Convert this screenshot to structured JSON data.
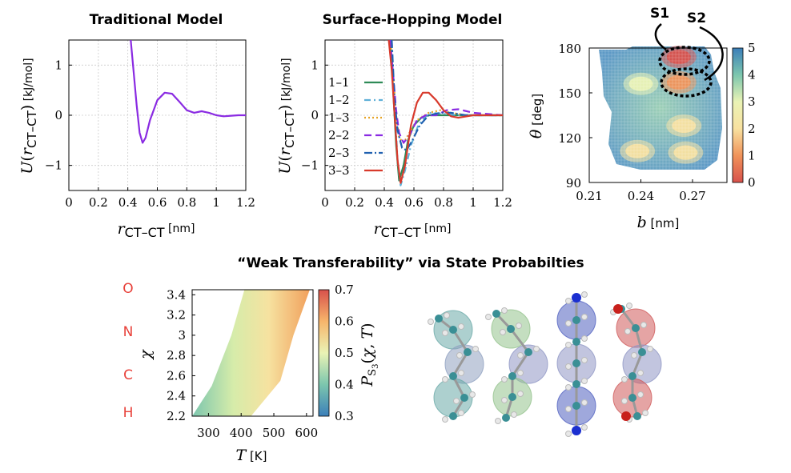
{
  "titles": {
    "traditional": "Traditional Model",
    "surface": "Surface-Hopping Model",
    "weak": "“Weak Transferability” via State Probabilties"
  },
  "states": {
    "s1": "S1",
    "s2": "S2"
  },
  "elements": [
    "O",
    "N",
    "C",
    "H"
  ],
  "chart_data": [
    {
      "type": "line",
      "title": "Traditional Model",
      "xlabel": "r_CT–CT [nm]",
      "ylabel": "U(r_CT–CT) [kJ/mol]",
      "xlim": [
        0,
        1.2
      ],
      "ylim": [
        -1.5,
        1.5
      ],
      "xticks": [
        "0",
        "0.2",
        "0.4",
        "0.6",
        "0.8",
        "1",
        "1.2"
      ],
      "yticks": [
        "1",
        "0",
        "−1"
      ],
      "grid": true,
      "series": [
        {
          "color": "#8a2be2",
          "x": [
            0.42,
            0.44,
            0.46,
            0.48,
            0.5,
            0.52,
            0.55,
            0.6,
            0.65,
            0.7,
            0.75,
            0.8,
            0.85,
            0.9,
            0.95,
            1.0,
            1.05,
            1.1,
            1.15,
            1.2
          ],
          "y": [
            1.5,
            0.85,
            0.2,
            -0.35,
            -0.55,
            -0.45,
            -0.1,
            0.3,
            0.45,
            0.43,
            0.27,
            0.1,
            0.05,
            0.08,
            0.05,
            0.0,
            -0.02,
            -0.01,
            0.0,
            0.0
          ]
        }
      ]
    },
    {
      "type": "line",
      "title": "Surface-Hopping Model",
      "xlabel": "r_CT–CT [nm]",
      "ylabel": "U(r_CT–CT) [kJ/mol]",
      "xlim": [
        0,
        1.2
      ],
      "ylim": [
        -1.5,
        1.5
      ],
      "xticks": [
        "0",
        "0.2",
        "0.4",
        "0.6",
        "0.8",
        "1",
        "1.2"
      ],
      "yticks": [
        "1",
        "0",
        "−1"
      ],
      "grid": true,
      "legend": "left",
      "series": [
        {
          "name": "1–1",
          "color": "#2e8b57",
          "dash": "",
          "x": [
            0.44,
            0.46,
            0.48,
            0.5,
            0.53,
            0.56,
            0.6,
            0.65,
            0.7,
            0.8,
            0.9,
            1.0,
            1.2
          ],
          "y": [
            1.5,
            0.5,
            -0.6,
            -1.3,
            -1.0,
            -0.5,
            -0.2,
            -0.05,
            0.0,
            0.0,
            0.0,
            0.0,
            0.0
          ]
        },
        {
          "name": "1–2",
          "color": "#5fb0d8",
          "dash": "8,4,2,4",
          "x": [
            0.45,
            0.47,
            0.49,
            0.51,
            0.54,
            0.58,
            0.63,
            0.7,
            0.8,
            0.9,
            1.0,
            1.2
          ],
          "y": [
            1.5,
            0.2,
            -0.9,
            -1.4,
            -1.1,
            -0.6,
            -0.2,
            0.05,
            0.03,
            0.0,
            0.0,
            0.0
          ]
        },
        {
          "name": "1–3",
          "color": "#e6a326",
          "dash": "2,3",
          "x": [
            0.44,
            0.46,
            0.48,
            0.5,
            0.53,
            0.57,
            0.62,
            0.7,
            0.78,
            0.85,
            0.95,
            1.2
          ],
          "y": [
            1.5,
            0.8,
            0.0,
            -0.45,
            -0.55,
            -0.35,
            -0.1,
            0.05,
            0.1,
            0.05,
            0.0,
            0.0
          ]
        },
        {
          "name": "2–2",
          "color": "#8a2be2",
          "dash": "9,5",
          "x": [
            0.44,
            0.46,
            0.48,
            0.5,
            0.53,
            0.57,
            0.62,
            0.68,
            0.75,
            0.82,
            0.9,
            1.0,
            1.2
          ],
          "y": [
            1.5,
            0.8,
            0.1,
            -0.35,
            -0.55,
            -0.4,
            -0.1,
            0.0,
            0.0,
            0.1,
            0.12,
            0.05,
            0.0
          ]
        },
        {
          "name": "2–3",
          "color": "#2060b0",
          "dash": "10,3,2,3",
          "x": [
            0.45,
            0.47,
            0.49,
            0.52,
            0.55,
            0.59,
            0.64,
            0.7,
            0.78,
            0.85,
            0.95,
            1.2
          ],
          "y": [
            1.5,
            0.3,
            -0.3,
            -0.65,
            -0.7,
            -0.5,
            -0.2,
            0.0,
            0.05,
            0.05,
            0.0,
            0.0
          ]
        },
        {
          "name": "3–3",
          "color": "#d83a2c",
          "dash": "",
          "x": [
            0.43,
            0.45,
            0.47,
            0.49,
            0.51,
            0.54,
            0.58,
            0.62,
            0.66,
            0.7,
            0.75,
            0.8,
            0.85,
            0.9,
            1.0,
            1.2
          ],
          "y": [
            1.5,
            0.9,
            0.0,
            -0.9,
            -1.35,
            -1.0,
            -0.2,
            0.25,
            0.45,
            0.45,
            0.3,
            0.1,
            -0.02,
            -0.05,
            0.0,
            0.0
          ]
        }
      ]
    },
    {
      "type": "heatmap",
      "xlabel": "b [nm]",
      "ylabel": "θ [deg]",
      "xlim": [
        0.21,
        0.29
      ],
      "ylim": [
        90,
        180
      ],
      "xticks": [
        "0.21",
        "0.24",
        "0.27"
      ],
      "yticks": [
        "180",
        "150",
        "120",
        "90"
      ],
      "colorbar": {
        "range": [
          0,
          5
        ],
        "ticks": [
          "5",
          "4",
          "3",
          "2",
          "1",
          "0"
        ]
      },
      "peaks": [
        {
          "b": 0.262,
          "theta": 174,
          "value": 0.3
        },
        {
          "b": 0.262,
          "theta": 157,
          "value": 0.9
        },
        {
          "b": 0.24,
          "theta": 156,
          "value": 2.5
        },
        {
          "b": 0.265,
          "theta": 128,
          "value": 1.5
        },
        {
          "b": 0.238,
          "theta": 111,
          "value": 2.2
        },
        {
          "b": 0.266,
          "theta": 110,
          "value": 2.3
        }
      ]
    },
    {
      "type": "heatmap",
      "xlabel": "T [K]",
      "ylabel": "χ",
      "colorbar_label": "P_S3(χ, T)",
      "xlim": [
        250,
        620
      ],
      "ylim": [
        2.2,
        3.45
      ],
      "xticks": [
        "300",
        "400",
        "500",
        "600"
      ],
      "yticks": [
        "3.4",
        "3.2",
        "3",
        "2.8",
        "2.6",
        "2.4",
        "2.2"
      ],
      "colorbar": {
        "range": [
          0.3,
          0.7
        ],
        "ticks": [
          "0.7",
          "0.6",
          "0.5",
          "0.4",
          "0.3"
        ]
      },
      "region": {
        "left_edge": [
          [
            250,
            2.2
          ],
          [
            310,
            2.5
          ],
          [
            370,
            3.0
          ],
          [
            410,
            3.45
          ]
        ],
        "right_edge": [
          [
            430,
            2.2
          ],
          [
            520,
            2.55
          ],
          [
            560,
            3.0
          ],
          [
            610,
            3.45
          ]
        ]
      }
    }
  ]
}
